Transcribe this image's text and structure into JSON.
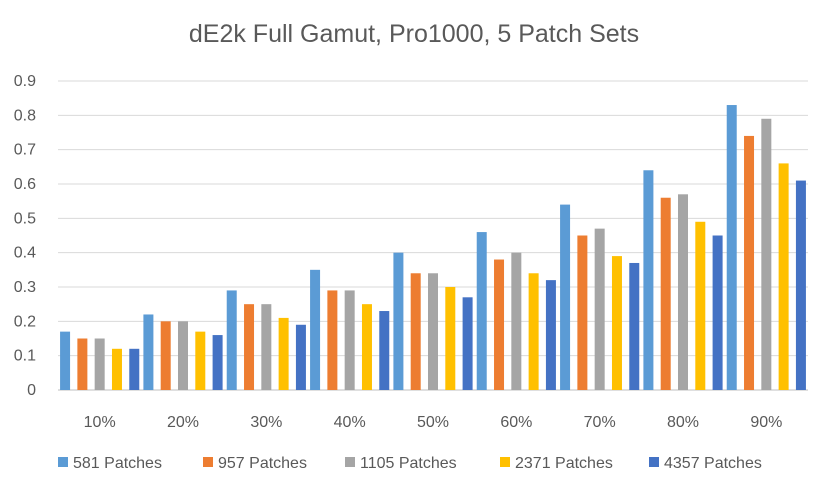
{
  "chart_data": {
    "type": "bar",
    "title": "dE2k Full Gamut, Pro1000, 5 Patch Sets",
    "xlabel": "",
    "ylabel": "",
    "categories": [
      "10%",
      "20%",
      "30%",
      "40%",
      "50%",
      "60%",
      "70%",
      "80%",
      "90%"
    ],
    "ylim": [
      0,
      0.9
    ],
    "yticks": [
      "0",
      "0.1",
      "0.2",
      "0.3",
      "0.4",
      "0.5",
      "0.6",
      "0.7",
      "0.8",
      "0.9"
    ],
    "grid": true,
    "legend_position": "bottom",
    "series": [
      {
        "name": "581 Patches",
        "color": "#5B9BD5",
        "values": [
          0.17,
          0.22,
          0.29,
          0.35,
          0.4,
          0.46,
          0.54,
          0.64,
          0.83
        ]
      },
      {
        "name": "957 Patches",
        "color": "#ED7D31",
        "values": [
          0.15,
          0.2,
          0.25,
          0.29,
          0.34,
          0.38,
          0.45,
          0.56,
          0.74
        ]
      },
      {
        "name": "1105 Patches",
        "color": "#A5A5A5",
        "values": [
          0.15,
          0.2,
          0.25,
          0.29,
          0.34,
          0.4,
          0.47,
          0.57,
          0.79
        ]
      },
      {
        "name": "2371 Patches",
        "color": "#FFC000",
        "values": [
          0.12,
          0.17,
          0.21,
          0.25,
          0.3,
          0.34,
          0.39,
          0.49,
          0.66
        ]
      },
      {
        "name": "4357 Patches",
        "color": "#4472C4",
        "values": [
          0.12,
          0.16,
          0.19,
          0.23,
          0.27,
          0.32,
          0.37,
          0.45,
          0.61
        ]
      }
    ]
  }
}
